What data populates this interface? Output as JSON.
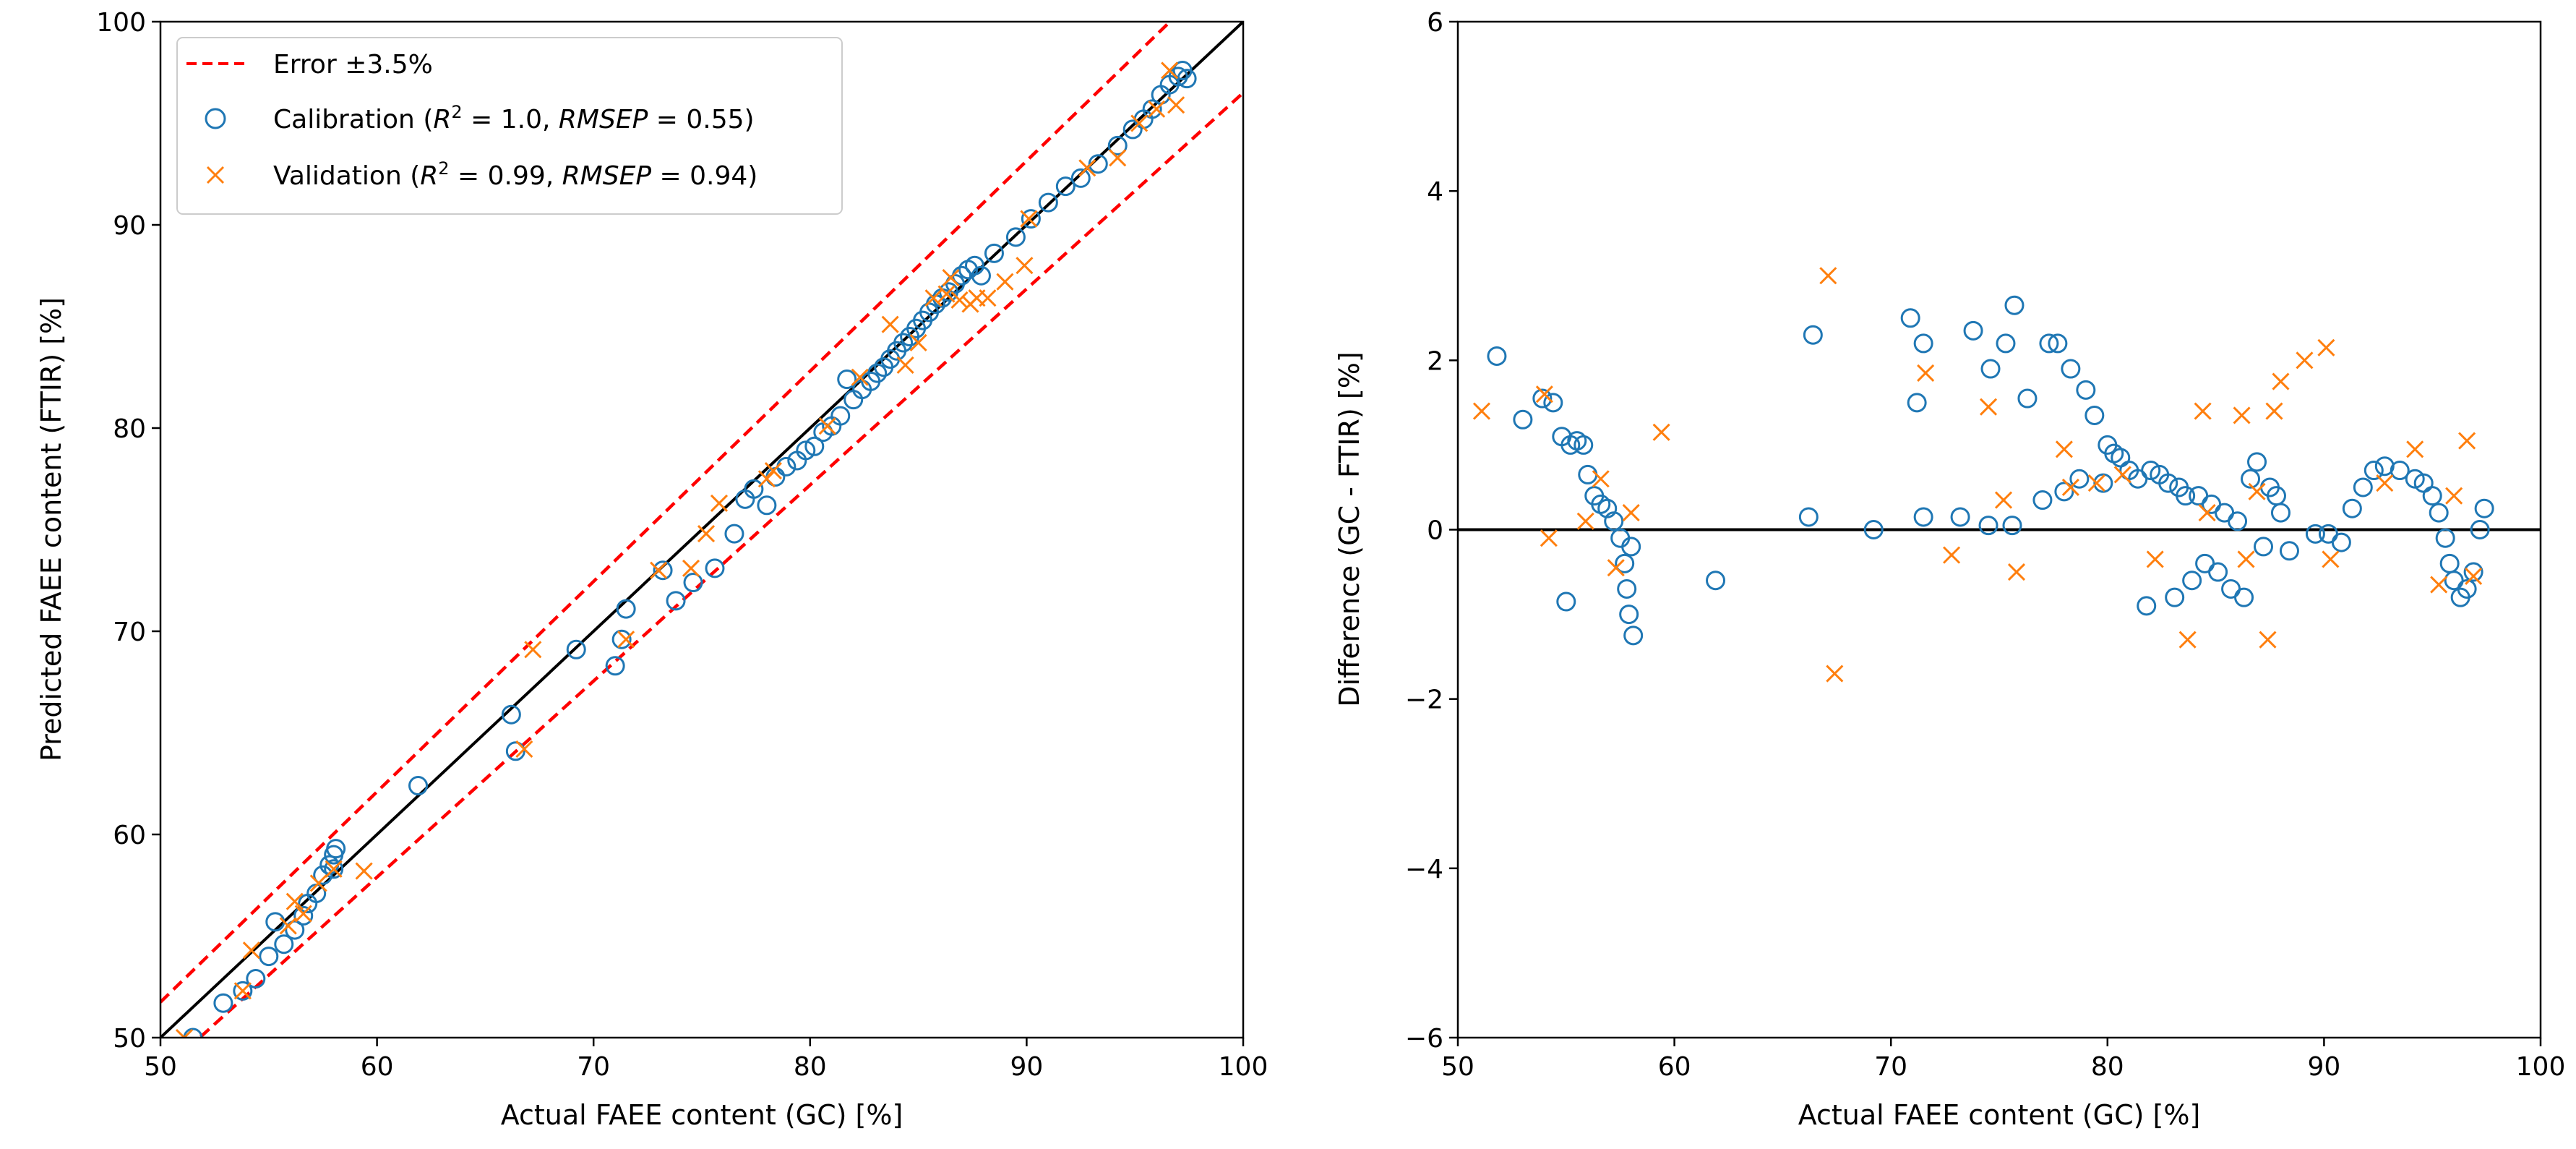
{
  "colors": {
    "calibration": "#1f77b4",
    "validation": "#ff7f0e",
    "error_band": "#ff0000",
    "reference_line": "#000000"
  },
  "chart_data": [
    {
      "type": "scatter",
      "title": "",
      "xlabel": "Actual FAEE content (GC) [%]",
      "ylabel": "Predicted FAEE content (FTIR) [%]",
      "xlim": [
        50,
        100
      ],
      "ylim": [
        50,
        100
      ],
      "xticks": [
        "50",
        "60",
        "70",
        "80",
        "90",
        "100"
      ],
      "yticks": [
        "50",
        "60",
        "70",
        "80",
        "90",
        "100"
      ],
      "grid": false,
      "legend_position": "top-left",
      "legend": {
        "error": {
          "prefix": "Error ",
          "pm": "±",
          "value": "3.5%"
        },
        "calibration": {
          "prefix": "Calibration (",
          "r2_value": "1.0",
          "rmsep_value": "0.55",
          "suffix": ")"
        },
        "validation": {
          "prefix": "Validation (",
          "r2_value": "0.99",
          "rmsep_value": "0.94",
          "suffix": ")"
        },
        "r_symbol": "R",
        "sup": "2",
        "eq": " = ",
        "comma": ", ",
        "rmsep_symbol": "RMSEP"
      },
      "lines": [
        {
          "name": "identity",
          "x": [
            50,
            100
          ],
          "y": [
            50,
            100
          ]
        },
        {
          "name": "error_upper",
          "x": [
            50,
            100
          ],
          "y": [
            51.75,
            103.5
          ]
        },
        {
          "name": "error_lower",
          "x": [
            50,
            100
          ],
          "y": [
            48.25,
            96.5
          ]
        }
      ],
      "series": [
        {
          "name": "Calibration",
          "marker": "circle",
          "x": [
            51.5,
            52.9,
            53.8,
            54.4,
            55.0,
            55.3,
            55.7,
            56.2,
            56.6,
            56.8,
            57.2,
            57.5,
            57.8,
            58.0,
            58.0,
            58.1,
            61.9,
            66.2,
            66.4,
            69.2,
            71.0,
            71.3,
            71.5,
            73.2,
            73.8,
            74.6,
            75.6,
            76.5,
            77.0,
            77.4,
            78.0,
            78.4,
            78.9,
            79.4,
            79.8,
            80.2,
            80.6,
            81.0,
            81.4,
            81.7,
            82.0,
            82.4,
            82.8,
            83.1,
            83.4,
            83.7,
            84.0,
            84.3,
            84.6,
            84.9,
            85.2,
            85.5,
            85.8,
            86.1,
            86.4,
            86.7,
            87.0,
            87.3,
            87.6,
            87.9,
            88.5,
            89.5,
            90.2,
            91.0,
            91.8,
            92.5,
            93.3,
            94.2,
            94.9,
            95.4,
            95.8,
            96.2,
            96.6,
            97.0,
            97.2,
            97.4
          ],
          "y": [
            50.0,
            51.7,
            52.3,
            52.9,
            54.0,
            55.7,
            54.6,
            55.3,
            56.0,
            56.6,
            57.1,
            58.0,
            58.5,
            59.0,
            58.3,
            59.3,
            62.4,
            65.9,
            64.1,
            69.1,
            68.3,
            69.6,
            71.1,
            73.0,
            71.5,
            72.4,
            73.1,
            74.8,
            76.5,
            77.0,
            76.2,
            77.6,
            78.1,
            78.4,
            78.9,
            79.1,
            79.8,
            80.1,
            80.6,
            82.4,
            81.4,
            81.9,
            82.3,
            82.7,
            83.0,
            83.4,
            83.8,
            84.2,
            84.5,
            84.9,
            85.3,
            85.7,
            86.1,
            86.4,
            86.7,
            87.1,
            87.5,
            87.8,
            88.0,
            87.5,
            88.6,
            89.4,
            90.3,
            91.1,
            91.9,
            92.3,
            93.0,
            93.9,
            94.7,
            95.2,
            95.7,
            96.4,
            96.9,
            97.3,
            97.6,
            97.2
          ]
        },
        {
          "name": "Validation",
          "marker": "x",
          "x": [
            51.1,
            53.8,
            54.2,
            55.9,
            56.2,
            56.6,
            57.3,
            58.0,
            59.4,
            66.8,
            67.2,
            71.5,
            73.0,
            74.5,
            75.2,
            75.8,
            78.0,
            78.3,
            80.8,
            82.3,
            83.7,
            84.4,
            85.0,
            85.7,
            86.3,
            86.5,
            86.9,
            87.4,
            87.7,
            88.2,
            89.0,
            89.9,
            90.1,
            92.8,
            94.2,
            95.2,
            96.0,
            96.6,
            96.9
          ],
          "y": [
            50.0,
            52.3,
            54.3,
            55.5,
            56.7,
            56.1,
            57.6,
            58.3,
            58.2,
            64.2,
            69.1,
            69.6,
            73.0,
            73.1,
            74.8,
            76.3,
            77.5,
            77.9,
            80.1,
            82.5,
            85.1,
            83.1,
            84.2,
            86.4,
            86.6,
            87.4,
            86.3,
            86.1,
            86.4,
            86.4,
            87.2,
            88.0,
            90.3,
            92.8,
            93.3,
            95.0,
            95.7,
            97.6,
            95.9
          ]
        }
      ]
    },
    {
      "type": "scatter",
      "title": "",
      "xlabel": "Actual FAEE content (GC) [%]",
      "ylabel": "Difference (GC - FTIR) [%]",
      "xlim": [
        50,
        100
      ],
      "ylim": [
        -6,
        6
      ],
      "xticks": [
        "50",
        "60",
        "70",
        "80",
        "90",
        "100"
      ],
      "yticks": [
        "−6",
        "−4",
        "−2",
        "0",
        "2",
        "4",
        "6"
      ],
      "grid": false,
      "reference_line_y": 0,
      "series": [
        {
          "name": "Calibration",
          "marker": "circle",
          "x": [
            51.8,
            53.0,
            53.9,
            54.4,
            54.8,
            55.0,
            55.2,
            55.5,
            55.8,
            56.0,
            56.3,
            56.6,
            56.9,
            57.2,
            57.5,
            57.7,
            57.8,
            57.9,
            58.0,
            58.1,
            61.9,
            66.2,
            66.4,
            69.2,
            70.9,
            71.2,
            71.5,
            71.5,
            73.2,
            73.8,
            74.5,
            74.6,
            75.3,
            75.6,
            75.7,
            76.3,
            77.0,
            77.3,
            77.7,
            78.0,
            78.3,
            78.7,
            79.0,
            79.4,
            79.8,
            80.0,
            80.3,
            80.6,
            81.0,
            81.4,
            81.8,
            82.0,
            82.4,
            82.8,
            83.1,
            83.3,
            83.6,
            83.9,
            84.2,
            84.5,
            84.8,
            85.1,
            85.4,
            85.7,
            86.0,
            86.3,
            86.6,
            86.9,
            87.2,
            87.5,
            87.8,
            88.0,
            88.4,
            89.6,
            90.2,
            90.8,
            91.3,
            91.8,
            92.3,
            92.8,
            93.5,
            94.2,
            94.6,
            95.0,
            95.3,
            95.6,
            95.8,
            96.0,
            96.3,
            96.6,
            96.9,
            97.2,
            97.4
          ],
          "y": [
            2.05,
            1.3,
            1.55,
            1.5,
            1.1,
            -0.85,
            1.0,
            1.05,
            1.0,
            0.65,
            0.4,
            0.3,
            0.25,
            0.1,
            -0.1,
            -0.4,
            -0.7,
            -1.0,
            -0.2,
            -1.25,
            -0.6,
            0.15,
            2.3,
            0.0,
            2.5,
            1.5,
            2.2,
            0.15,
            0.15,
            2.35,
            0.05,
            1.9,
            2.2,
            0.05,
            2.65,
            1.55,
            0.35,
            2.2,
            2.2,
            0.45,
            1.9,
            0.6,
            1.65,
            1.35,
            0.55,
            1.0,
            0.9,
            0.85,
            0.7,
            0.6,
            -0.9,
            0.7,
            0.65,
            0.55,
            -0.8,
            0.5,
            0.4,
            -0.6,
            0.4,
            -0.4,
            0.3,
            -0.5,
            0.2,
            -0.7,
            0.1,
            -0.8,
            0.6,
            0.8,
            -0.2,
            0.5,
            0.4,
            0.2,
            -0.25,
            -0.05,
            -0.05,
            -0.15,
            0.25,
            0.5,
            0.7,
            0.75,
            0.7,
            0.6,
            0.55,
            0.4,
            0.2,
            -0.1,
            -0.4,
            -0.6,
            -0.8,
            -0.7,
            -0.5,
            0.0,
            0.25
          ]
        },
        {
          "name": "Validation",
          "marker": "x",
          "x": [
            51.1,
            54.0,
            54.2,
            55.9,
            56.6,
            57.3,
            58.0,
            59.4,
            67.1,
            67.4,
            71.6,
            72.8,
            74.5,
            75.2,
            75.8,
            78.0,
            78.3,
            79.5,
            80.7,
            82.2,
            83.7,
            84.4,
            84.6,
            86.2,
            86.4,
            86.9,
            87.4,
            87.7,
            88.0,
            89.1,
            90.1,
            90.3,
            92.8,
            94.2,
            95.3,
            96.0,
            96.6,
            96.9
          ],
          "y": [
            1.4,
            1.6,
            -0.1,
            0.1,
            0.6,
            -0.45,
            0.2,
            1.15,
            3.0,
            -1.7,
            1.85,
            -0.3,
            1.45,
            0.35,
            -0.5,
            0.95,
            0.5,
            0.55,
            0.65,
            -0.35,
            -1.3,
            1.4,
            0.2,
            1.35,
            -0.35,
            0.45,
            -1.3,
            1.4,
            1.75,
            2.0,
            2.15,
            -0.35,
            0.55,
            0.95,
            -0.65,
            0.4,
            1.05,
            -0.55
          ]
        }
      ]
    }
  ]
}
